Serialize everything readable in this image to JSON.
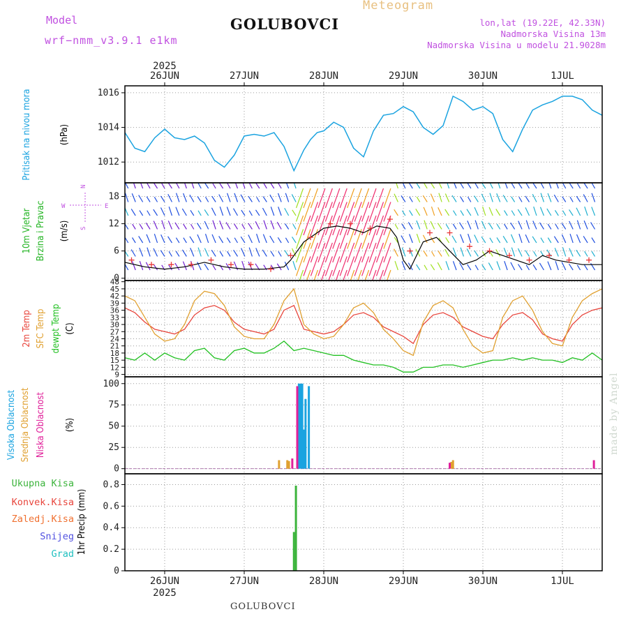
{
  "header": {
    "model_label": "Model",
    "model_name": "wrf−nmm_v3.9.1  e1km",
    "station": "GOLUBOVCI",
    "title": "Meteogram",
    "coords": "lon,lat (19.22E, 42.33N)",
    "elevation": "Nadmorska Visina 13m",
    "model_elevation": "Nadmorska Visina u modelu 21.9028m",
    "footer_station": "GOLUBOVCI",
    "watermark": "made by Angel"
  },
  "colors": {
    "pressure": "#1aa3e0",
    "wind_label": "#22b422",
    "temp2m": "#e8453c",
    "sfc": "#e0a030",
    "dew": "#22c022",
    "high_cloud": "#1aa3e0",
    "mid_cloud": "#e0a030",
    "low_cloud": "#e0209a",
    "total_precip": "#3cb43c",
    "conv_precip": "#e8453c",
    "strat_precip": "#f07030",
    "snow": "#5050e0",
    "hail": "#20c0c0",
    "compass": "#c050e0"
  },
  "chart_data": [
    {
      "type": "line",
      "panel": "pressure",
      "ylabel_lines": [
        "Pritisak na nivou mora",
        "(hPa)"
      ],
      "yticks": [
        1012,
        1014,
        1016
      ],
      "ylim": [
        1010.8,
        1016.4
      ],
      "x_unit": "hours from 2025-06-25 12:00",
      "xlim": [
        0,
        144
      ],
      "grid": true,
      "series": [
        {
          "x": [
            0,
            3,
            6,
            9,
            12,
            15,
            18,
            21,
            24,
            27,
            30,
            33,
            36,
            39,
            42,
            45,
            48,
            51,
            54,
            56,
            58,
            60,
            63,
            66,
            69,
            72,
            75,
            78,
            81,
            84,
            87,
            90,
            93,
            96,
            99,
            102,
            105,
            108,
            111,
            114,
            117,
            120,
            123,
            126,
            129,
            132,
            135,
            138,
            141,
            144
          ],
          "values": [
            1013.7,
            1012.8,
            1012.6,
            1013.4,
            1013.9,
            1013.4,
            1013.3,
            1013.5,
            1013.1,
            1012.1,
            1011.7,
            1012.4,
            1013.5,
            1013.6,
            1013.5,
            1013.7,
            1012.9,
            1011.5,
            1012.7,
            1013.3,
            1013.7,
            1013.8,
            1014.3,
            1014.0,
            1012.8,
            1012.3,
            1013.8,
            1014.7,
            1014.8,
            1015.2,
            1014.9,
            1014.0,
            1013.6,
            1014.1,
            1015.8,
            1015.5,
            1015.0,
            1015.2,
            1014.8,
            1013.3,
            1012.6,
            1013.9,
            1015.0,
            1015.3,
            1015.5,
            1015.8,
            1015.8,
            1015.6,
            1015.0,
            1014.7
          ]
        }
      ]
    },
    {
      "type": "line",
      "panel": "wind",
      "ylabel_lines": [
        "10m Vjetar",
        "Brzina i Pravac",
        "(m/s)"
      ],
      "compass": [
        "N",
        "W",
        "E",
        "S"
      ],
      "yticks": [
        0,
        6,
        12,
        18
      ],
      "ylim": [
        -0.5,
        21
      ],
      "xlim": [
        0,
        144
      ],
      "series": [
        {
          "name": "speed",
          "x": [
            0,
            6,
            12,
            18,
            24,
            30,
            36,
            42,
            48,
            50,
            52,
            54,
            56,
            60,
            64,
            68,
            72,
            76,
            80,
            82,
            84,
            86,
            90,
            94,
            98,
            102,
            106,
            110,
            114,
            118,
            122,
            126,
            130,
            134,
            138,
            144
          ],
          "values": [
            3.5,
            2.5,
            2.0,
            2.5,
            3.5,
            2.5,
            2.0,
            2.0,
            2.5,
            4.0,
            6.0,
            8.0,
            9.0,
            11.0,
            11.5,
            11.0,
            10.0,
            11.5,
            11.0,
            9.0,
            4.0,
            2.0,
            8.0,
            9.0,
            6.0,
            3.0,
            4.0,
            6.0,
            5.0,
            4.0,
            3.0,
            5.0,
            4.0,
            3.5,
            3.0,
            3.0
          ]
        },
        {
          "name": "gust_marks",
          "x": [
            2,
            8,
            14,
            20,
            26,
            32,
            38,
            44,
            50,
            56,
            62,
            68,
            74,
            80,
            86,
            92,
            98,
            104,
            110,
            116,
            122,
            128,
            134,
            140
          ],
          "values": [
            4,
            3,
            3,
            3,
            4,
            3,
            3,
            2,
            5,
            9,
            12,
            12,
            11,
            13,
            6,
            10,
            10,
            7,
            6,
            5,
            4,
            5,
            4,
            4
          ]
        }
      ]
    },
    {
      "type": "line",
      "panel": "temperature",
      "ylabel_lines": [
        "2m Temp",
        "SFC Temp",
        "dewpt Temp",
        "(C)"
      ],
      "yticks": [
        9,
        12,
        15,
        18,
        21,
        24,
        27,
        30,
        33,
        36,
        39,
        42,
        45,
        48
      ],
      "ylim": [
        8,
        48.5
      ],
      "xlim": [
        0,
        144
      ],
      "series": [
        {
          "name": "2m",
          "x": [
            0,
            3,
            6,
            9,
            12,
            15,
            18,
            21,
            24,
            27,
            30,
            33,
            36,
            39,
            42,
            45,
            48,
            51,
            54,
            57,
            60,
            63,
            66,
            69,
            72,
            75,
            78,
            81,
            84,
            87,
            90,
            93,
            96,
            99,
            102,
            105,
            108,
            111,
            114,
            117,
            120,
            123,
            126,
            129,
            132,
            135,
            138,
            141,
            144
          ],
          "values": [
            37,
            35,
            31,
            28,
            27,
            26,
            28,
            34,
            37,
            38,
            36,
            31,
            28,
            27,
            26,
            28,
            36,
            38,
            28,
            27,
            26,
            27,
            30,
            34,
            35,
            33,
            29,
            27,
            25,
            22,
            30,
            34,
            35,
            33,
            29,
            27,
            25,
            24,
            30,
            34,
            35,
            32,
            26,
            24,
            23,
            30,
            34,
            36,
            37
          ]
        },
        {
          "name": "sfc",
          "x": [
            0,
            3,
            6,
            9,
            12,
            15,
            18,
            21,
            24,
            27,
            30,
            33,
            36,
            39,
            42,
            45,
            48,
            51,
            54,
            57,
            60,
            63,
            66,
            69,
            72,
            75,
            78,
            81,
            84,
            87,
            90,
            93,
            96,
            99,
            102,
            105,
            108,
            111,
            114,
            117,
            120,
            123,
            126,
            129,
            132,
            135,
            138,
            141,
            144
          ],
          "values": [
            42,
            40,
            33,
            26,
            23,
            24,
            30,
            40,
            44,
            43,
            38,
            29,
            25,
            24,
            24,
            30,
            40,
            45,
            30,
            26,
            24,
            25,
            30,
            37,
            39,
            35,
            28,
            24,
            19,
            17,
            31,
            38,
            40,
            37,
            28,
            21,
            18,
            19,
            33,
            40,
            42,
            36,
            27,
            22,
            21,
            33,
            40,
            43,
            45
          ]
        },
        {
          "name": "dewpt",
          "x": [
            0,
            3,
            6,
            9,
            12,
            15,
            18,
            21,
            24,
            27,
            30,
            33,
            36,
            39,
            42,
            45,
            48,
            51,
            54,
            57,
            60,
            63,
            66,
            69,
            72,
            75,
            78,
            81,
            84,
            87,
            90,
            93,
            96,
            99,
            102,
            105,
            108,
            111,
            114,
            117,
            120,
            123,
            126,
            129,
            132,
            135,
            138,
            141,
            144
          ],
          "values": [
            16,
            15,
            18,
            15,
            18,
            16,
            15,
            19,
            20,
            16,
            15,
            19,
            20,
            18,
            18,
            20,
            23,
            19,
            20,
            19,
            18,
            17,
            17,
            15,
            14,
            13,
            13,
            12,
            10,
            10,
            12,
            12,
            13,
            13,
            12,
            13,
            14,
            15,
            15,
            16,
            15,
            16,
            15,
            15,
            14,
            16,
            15,
            18,
            15
          ]
        }
      ]
    },
    {
      "type": "bar",
      "panel": "cloud",
      "ylabel_lines": [
        "Visoka Oblacnost",
        "Srednja Oblacnost",
        "Niska Oblacnost",
        "(%)"
      ],
      "yticks": [
        0,
        25,
        50,
        75,
        100
      ],
      "ylim": [
        -6,
        108
      ],
      "xlim": [
        0,
        144
      ],
      "series": [
        {
          "name": "high",
          "x": [
            52.5,
            53.0,
            53.5,
            54.0,
            54.5,
            55.5
          ],
          "values": [
            100,
            100,
            100,
            46,
            82,
            97
          ]
        },
        {
          "name": "mid",
          "x": [
            46.5,
            49.0,
            49.5,
            98.5,
            99.0
          ],
          "values": [
            10,
            10,
            9,
            8,
            10
          ]
        },
        {
          "name": "low",
          "x": [
            50.5,
            52.0,
            98.0,
            141.5
          ],
          "values": [
            12,
            97,
            7,
            10
          ]
        }
      ]
    },
    {
      "type": "bar",
      "panel": "precip",
      "ylabel_lines": [
        "1hr Precip (mm)"
      ],
      "legend": [
        "Ukupna  Kisa",
        "Konvek.Kisa",
        "Zaledj.Kisa",
        "Snijeg",
        "Grad"
      ],
      "yticks": [
        0,
        0.2,
        0.4,
        0.6,
        0.8
      ],
      "ylim": [
        0,
        0.9
      ],
      "xlim": [
        0,
        144
      ],
      "series": [
        {
          "name": "total",
          "x": [
            51.0,
            51.6
          ],
          "values": [
            0.36,
            0.79
          ]
        }
      ]
    }
  ],
  "x_axis": {
    "year": "2025",
    "days": [
      "26JUN",
      "27JUN",
      "28JUN",
      "29JUN",
      "30JUN",
      "1JUL"
    ],
    "day_hours": [
      12,
      36,
      60,
      84,
      108,
      132
    ]
  }
}
